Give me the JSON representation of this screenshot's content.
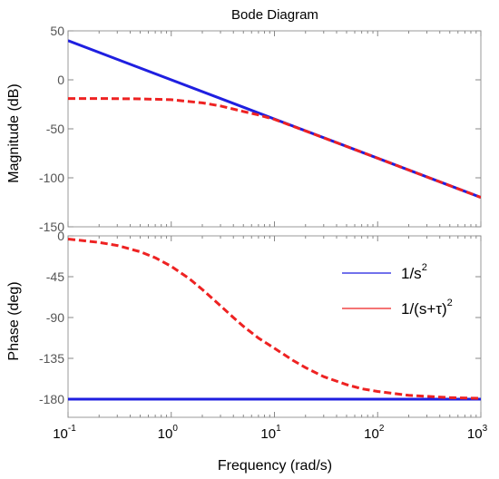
{
  "chart_data": {
    "title": "Bode Diagram",
    "xlabel": "Frequency  (rad/s)",
    "x_scale": "log",
    "xlim": [
      0.1,
      1000
    ],
    "x_ticks": [
      {
        "base": "10",
        "exp": "-1"
      },
      {
        "base": "10",
        "exp": "0"
      },
      {
        "base": "10",
        "exp": "1"
      },
      {
        "base": "10",
        "exp": "2"
      },
      {
        "base": "10",
        "exp": "3"
      }
    ],
    "grid": false,
    "legend_position": "top-right (phase panel)",
    "legend": [
      {
        "base": "1/s",
        "sup": "2",
        "color": "#1f1fe0"
      },
      {
        "base": "1/(s+τ)",
        "sup": "2",
        "color": "#ee2222"
      }
    ],
    "panels": [
      {
        "type": "line",
        "ylabel": "Magnitude (dB)",
        "ylim": [
          -150,
          50
        ],
        "y_ticks": [
          "50",
          "0",
          "-50",
          "-100",
          "-150"
        ],
        "series": [
          {
            "name": "1/s^2",
            "color": "#1f1fe0",
            "style": "solid",
            "x": [
              0.1,
              1000
            ],
            "y": [
              40,
              -120
            ]
          },
          {
            "name": "1/(s+τ)^2",
            "color": "#ee2222",
            "style": "dashed",
            "x": [
              0.1,
              0.2,
              0.5,
              1,
              2,
              3,
              5,
              7,
              10,
              20,
              50,
              100,
              300,
              1000
            ],
            "y": [
              -19.1,
              -19.1,
              -19.4,
              -20.3,
              -23.5,
              -26.7,
              -32.3,
              -35.8,
              -40.4,
              -52.1,
              -68.0,
              -80.0,
              -99.1,
              -120.0
            ]
          }
        ]
      },
      {
        "type": "line",
        "ylabel": "Phase (deg)",
        "ylim": [
          -200,
          0
        ],
        "y_ticks": [
          "0",
          "-45",
          "-90",
          "-135",
          "-180"
        ],
        "series": [
          {
            "name": "1/s^2",
            "color": "#1f1fe0",
            "style": "solid",
            "x": [
              0.1,
              1000
            ],
            "y": [
              -180,
              -180
            ]
          },
          {
            "name": "1/(s+τ)^2",
            "color": "#ee2222",
            "style": "dashed",
            "x": [
              0.1,
              0.2,
              0.3,
              0.5,
              0.7,
              1,
              1.5,
              2,
              3,
              4,
              5,
              7,
              10,
              15,
              20,
              30,
              50,
              70,
              100,
              200,
              500,
              1000
            ],
            "y": [
              -3.5,
              -7.2,
              -10.6,
              -17.5,
              -24.1,
              -33.6,
              -47.3,
              -59.1,
              -77.0,
              -90.0,
              -99.7,
              -112.7,
              -123.9,
              -137.0,
              -145.2,
              -155.2,
              -164.0,
              -168.5,
              -171.5,
              -175.8,
              -178.3,
              -179.1
            ]
          }
        ]
      }
    ]
  }
}
